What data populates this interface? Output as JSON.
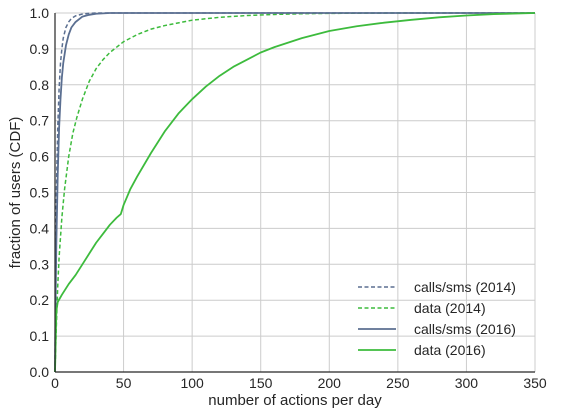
{
  "chart_data": {
    "type": "line",
    "title": "",
    "xlabel": "number of actions per day",
    "ylabel": "fraction of users (CDF)",
    "xlim": [
      0,
      350
    ],
    "ylim": [
      0,
      1.0
    ],
    "xticks": [
      "0",
      "50",
      "100",
      "150",
      "200",
      "250",
      "300",
      "350"
    ],
    "yticks": [
      "0.0",
      "0.1",
      "0.2",
      "0.3",
      "0.4",
      "0.5",
      "0.6",
      "0.7",
      "0.8",
      "0.9",
      "1.0"
    ],
    "grid": true,
    "legend_position": "bottom-right",
    "colors": {
      "calls": "#5b6f91",
      "data": "#3dbb3d",
      "grid": "#cccccc",
      "axes": "#262626"
    },
    "series": [
      {
        "name": "calls/sms (2014)",
        "style": "dashed",
        "color": "#5b6f91",
        "x": [
          0,
          0.5,
          1,
          2,
          3,
          4,
          5,
          6,
          8,
          10,
          12,
          15,
          20,
          25,
          30,
          40,
          50,
          350
        ],
        "y": [
          0,
          0.3,
          0.5,
          0.68,
          0.79,
          0.86,
          0.9,
          0.93,
          0.96,
          0.975,
          0.985,
          0.992,
          0.997,
          0.999,
          1.0,
          1.0,
          1.0,
          1.0
        ]
      },
      {
        "name": "data (2014)",
        "style": "dashed",
        "color": "#3dbb3d",
        "x": [
          0,
          1,
          2,
          3,
          5,
          7,
          10,
          13,
          16,
          20,
          25,
          30,
          35,
          40,
          50,
          60,
          70,
          80,
          100,
          120,
          140,
          160,
          180,
          200,
          250,
          350
        ],
        "y": [
          0,
          0.13,
          0.24,
          0.32,
          0.43,
          0.51,
          0.6,
          0.665,
          0.71,
          0.76,
          0.81,
          0.845,
          0.87,
          0.89,
          0.92,
          0.94,
          0.955,
          0.965,
          0.98,
          0.988,
          0.993,
          0.996,
          0.998,
          0.999,
          1.0,
          1.0
        ]
      },
      {
        "name": "calls/sms (2016)",
        "style": "solid",
        "color": "#5b6f91",
        "x": [
          0,
          0.5,
          1,
          2,
          3,
          4,
          5,
          6,
          8,
          10,
          12,
          15,
          20,
          25,
          30,
          40,
          50,
          350
        ],
        "y": [
          0,
          0.22,
          0.36,
          0.55,
          0.68,
          0.76,
          0.82,
          0.86,
          0.91,
          0.94,
          0.96,
          0.975,
          0.99,
          0.995,
          0.998,
          1.0,
          1.0,
          1.0
        ]
      },
      {
        "name": "data (2016)",
        "style": "solid",
        "color": "#3dbb3d",
        "x": [
          0,
          1,
          2,
          5,
          10,
          15,
          20,
          25,
          30,
          35,
          40,
          45,
          48,
          50,
          55,
          60,
          70,
          80,
          90,
          100,
          110,
          120,
          130,
          140,
          150,
          160,
          180,
          200,
          220,
          240,
          260,
          280,
          300,
          320,
          350
        ],
        "y": [
          0,
          0.17,
          0.195,
          0.215,
          0.245,
          0.27,
          0.3,
          0.33,
          0.36,
          0.385,
          0.41,
          0.43,
          0.44,
          0.465,
          0.51,
          0.545,
          0.61,
          0.67,
          0.72,
          0.76,
          0.795,
          0.825,
          0.85,
          0.87,
          0.89,
          0.905,
          0.93,
          0.95,
          0.963,
          0.973,
          0.981,
          0.988,
          0.993,
          0.997,
          1.0
        ]
      }
    ]
  }
}
